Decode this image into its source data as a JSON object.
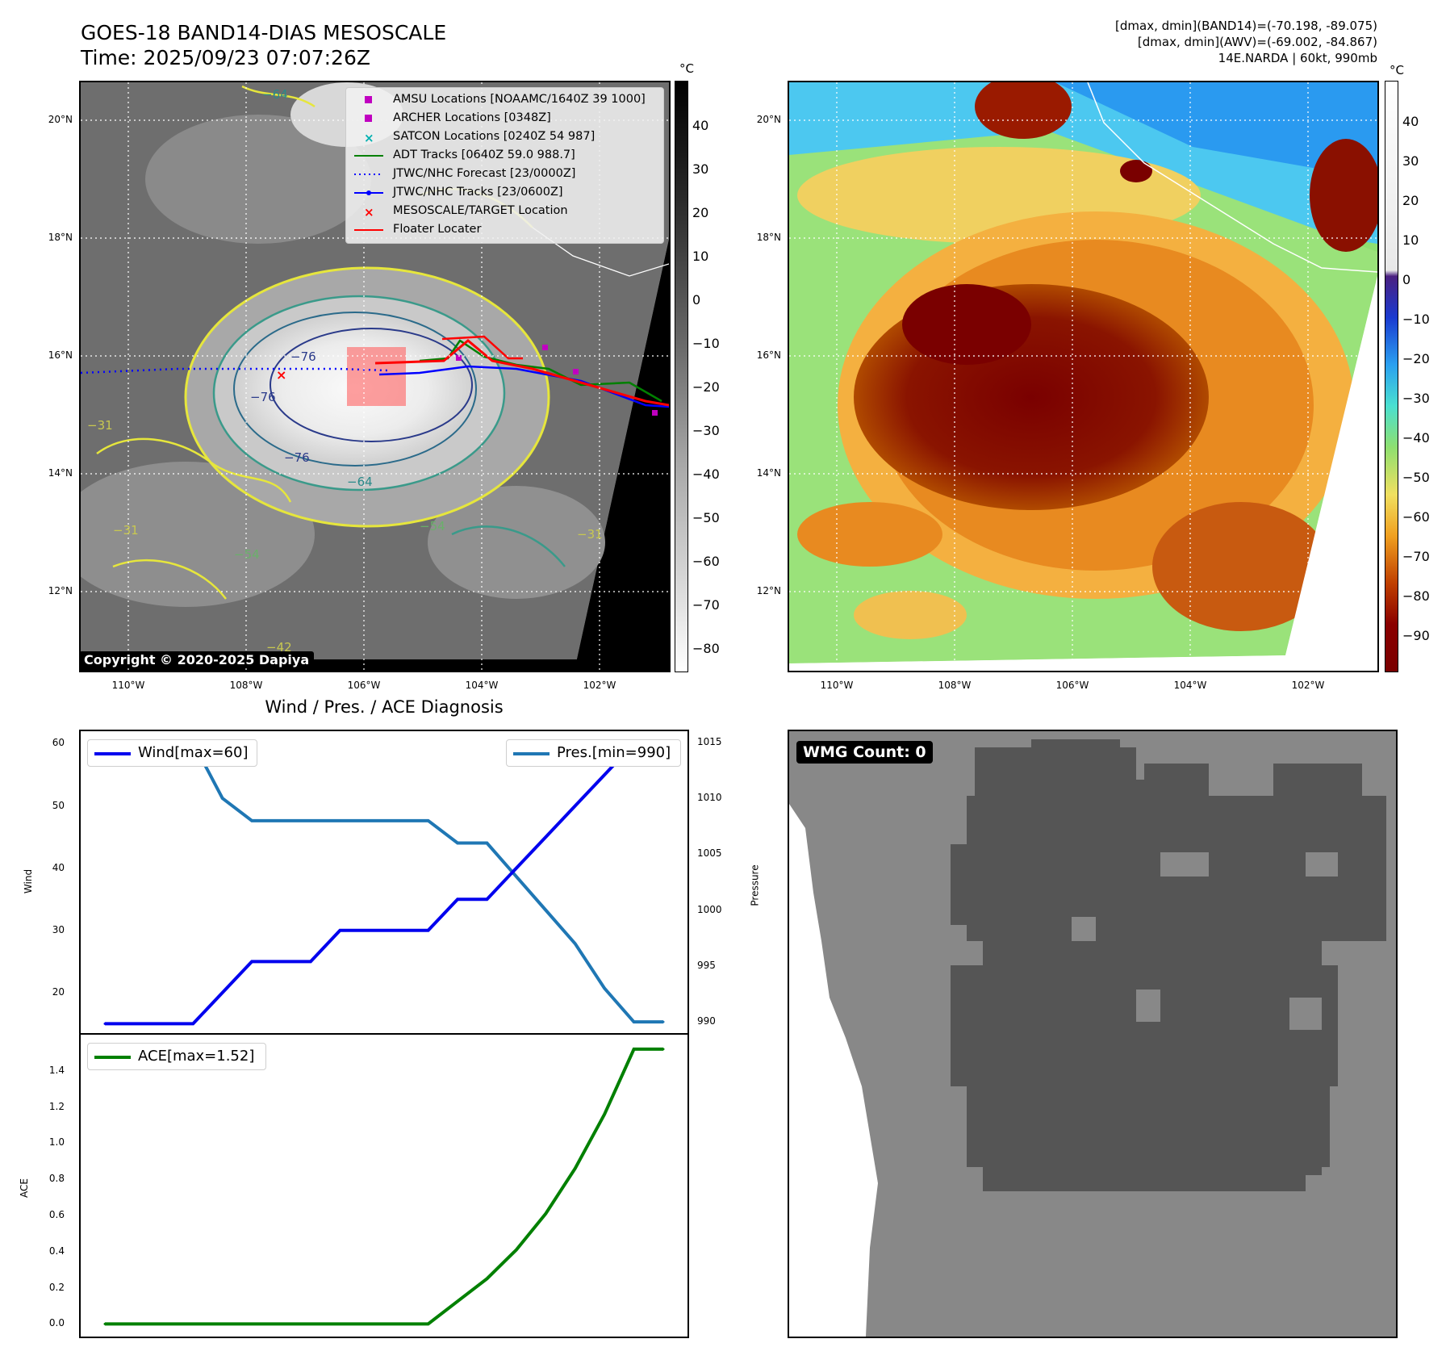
{
  "header": {
    "title_line1": "GOES-18 BAND14-DIAS MESOSCALE",
    "title_line2": "Time: 2025/09/23 07:07:26Z",
    "meta_line1": "[dmax, dmin](BAND14)=(-70.198, -89.075)",
    "meta_line2": "[dmax, dmin](AWV)=(-69.002, -84.867)",
    "meta_line3": "14E.NARDA | 60kt, 990mb"
  },
  "map_axes": {
    "lat_labels": [
      "20°N",
      "18°N",
      "16°N",
      "14°N",
      "12°N"
    ],
    "lon_labels": [
      "110°W",
      "108°W",
      "106°W",
      "104°W",
      "102°W"
    ]
  },
  "ir_panel": {
    "copyright": "Copyright © 2020-2025 Dapiya",
    "colorbar_unit": "°C",
    "colorbar_ticks": [
      "40",
      "30",
      "20",
      "10",
      "0",
      "−10",
      "−20",
      "−30",
      "−40",
      "−50",
      "−60",
      "−70",
      "−80"
    ],
    "contour_labels": [
      "−64",
      "−76",
      "−76",
      "−76",
      "−64",
      "−54",
      "−54",
      "−31",
      "−31",
      "−42",
      "−31"
    ],
    "legend": [
      {
        "label": "AMSU Locations [NOAAMC/1640Z 39 1000]",
        "color": "#c000c0",
        "symbol": "square"
      },
      {
        "label": "ARCHER Locations [0348Z]",
        "color": "#c000c0",
        "symbol": "square"
      },
      {
        "label": "SATCON Locations [0240Z 54 987]",
        "color": "#00b0b0",
        "symbol": "x"
      },
      {
        "label": "ADT Tracks [0640Z 59.0 988.7]",
        "color": "#008000",
        "symbol": "line"
      },
      {
        "label": "JTWC/NHC Forecast [23/0000Z]",
        "color": "#0000ff",
        "symbol": "dotted"
      },
      {
        "label": "JTWC/NHC Tracks [23/0600Z]",
        "color": "#0000ff",
        "symbol": "line-dot"
      },
      {
        "label": "MESOSCALE/TARGET Location",
        "color": "#ff0000",
        "symbol": "x"
      },
      {
        "label": "Floater Locater",
        "color": "#ff0000",
        "symbol": "line"
      }
    ]
  },
  "awv_panel": {
    "colorbar_unit": "°C",
    "colorbar_ticks": [
      "40",
      "30",
      "20",
      "10",
      "0",
      "−10",
      "−20",
      "−30",
      "−40",
      "−50",
      "−60",
      "−70",
      "−80",
      "−90"
    ]
  },
  "diagnosis": {
    "title": "Wind / Pres. / ACE Diagnosis",
    "wind_ylabel": "Wind",
    "pres_ylabel": "Pressure",
    "ace_ylabel": "ACE",
    "wind_legend": "Wind[max=60]",
    "pres_legend": "Pres.[min=990]",
    "ace_legend": "ACE[max=1.52]",
    "wind_ticks": [
      "60",
      "50",
      "40",
      "30",
      "20"
    ],
    "pres_ticks": [
      "1015",
      "1010",
      "1005",
      "1000",
      "995",
      "990"
    ],
    "ace_ticks": [
      "1.4",
      "1.2",
      "1.0",
      "0.8",
      "0.6",
      "0.4",
      "0.2",
      "0.0"
    ]
  },
  "wmg_panel": {
    "label": "WMG Count: 0"
  },
  "chart_data": [
    {
      "type": "line",
      "title": "Wind / Pres. / ACE Diagnosis",
      "x": [
        0,
        1,
        2,
        3,
        4,
        5,
        6,
        7,
        8,
        9,
        10,
        11,
        12,
        13,
        14,
        15,
        16,
        17,
        18,
        19
      ],
      "series": [
        {
          "name": "Wind[max=60]",
          "axis": "left",
          "color": "#0000ee",
          "values": [
            15,
            15,
            15,
            15,
            20,
            25,
            25,
            25,
            30,
            30,
            30,
            30,
            35,
            35,
            40,
            45,
            50,
            55,
            60,
            60
          ]
        },
        {
          "name": "Pres.[min=990]",
          "axis": "right",
          "color": "#1f77b4",
          "values": [
            1015,
            1015,
            1015,
            1015,
            1010,
            1008,
            1008,
            1008,
            1008,
            1008,
            1008,
            1008,
            1006,
            1006,
            1003,
            1000,
            997,
            993,
            990,
            990
          ]
        }
      ],
      "ylim_left": [
        13.5,
        62
      ],
      "ylim_right": [
        989,
        1016
      ],
      "ylabel_left": "Wind",
      "ylabel_right": "Pressure"
    },
    {
      "type": "line",
      "x": [
        0,
        1,
        2,
        3,
        4,
        5,
        6,
        7,
        8,
        9,
        10,
        11,
        12,
        13,
        14,
        15,
        16,
        17,
        18,
        19
      ],
      "series": [
        {
          "name": "ACE[max=1.52]",
          "color": "#008000",
          "values": [
            0,
            0,
            0,
            0,
            0,
            0,
            0,
            0,
            0,
            0,
            0,
            0,
            0.125,
            0.25,
            0.41,
            0.61,
            0.86,
            1.16,
            1.52,
            1.52
          ]
        }
      ],
      "ylim": [
        -0.07,
        1.6
      ],
      "ylabel": "ACE"
    }
  ]
}
